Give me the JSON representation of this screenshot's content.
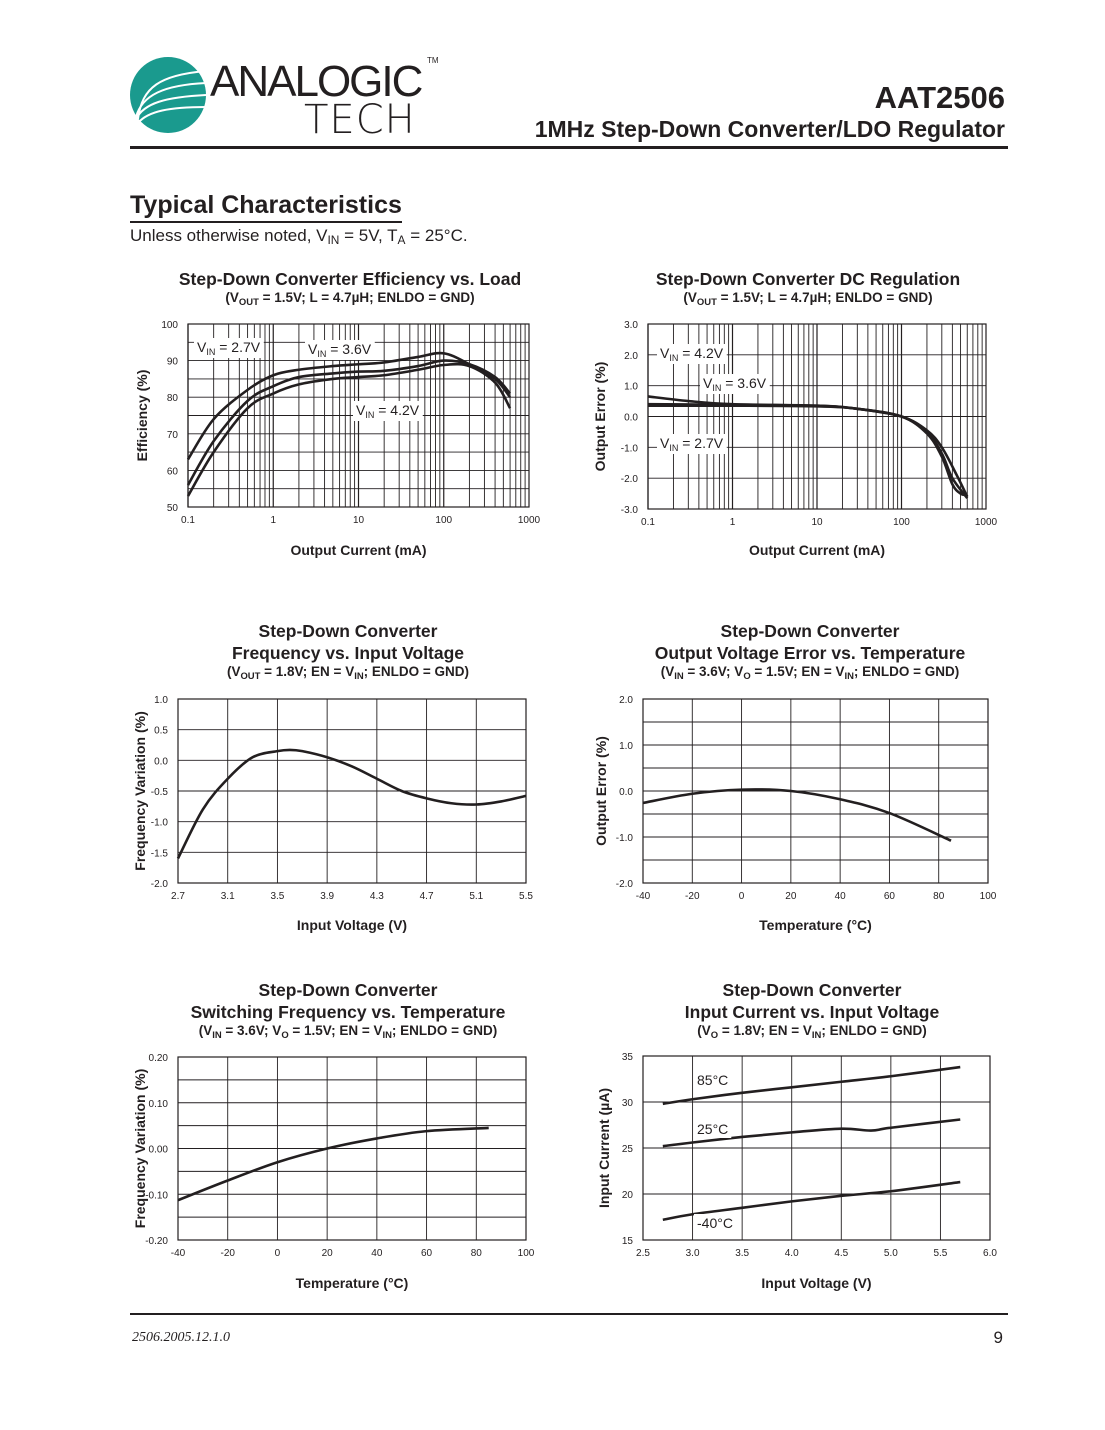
{
  "header": {
    "logo_top": "ANALOGIC",
    "logo_bottom": "TECH",
    "logo_tm": "TM",
    "logo_color": "#1a9a8e",
    "part_number": "AAT2506",
    "product_title": "1MHz Step-Down Converter/LDO Regulator"
  },
  "section": {
    "title": "Typical Characteristics",
    "note": [
      {
        "t": "Unless otherwise noted, V"
      },
      {
        "sub": "IN"
      },
      {
        "t": " = 5V, T"
      },
      {
        "sub": "A"
      },
      {
        "t": " = 25°C."
      }
    ]
  },
  "footer": {
    "doc_code": "2506.2005.12.1.0",
    "page_number": "9"
  },
  "chart_data": [
    {
      "type": "line",
      "title_lines": [
        "Step-Down Converter Efficiency vs. Load"
      ],
      "subtitle": [
        {
          "t": "(V"
        },
        {
          "sub": "OUT"
        },
        {
          "t": " = 1.5V; L = 4.7µH; ENLDO = GND)"
        }
      ],
      "xlabel": "Output Current (mA)",
      "ylabel": "Efficiency (%)",
      "xscale": "log",
      "xlim": [
        0.1,
        1000
      ],
      "ylim": [
        50,
        100
      ],
      "grid": true,
      "xticks": [
        0.1,
        1,
        10,
        100,
        1000
      ],
      "xtick_labels": [
        "0.1",
        "1",
        "10",
        "100",
        "1000"
      ],
      "yticks": [
        50,
        60,
        70,
        80,
        90,
        100
      ],
      "ytick_labels": [
        "50",
        "60",
        "70",
        "80",
        "90",
        "100"
      ],
      "ygrid_step": 5,
      "series": [
        {
          "label": [
            {
              "t": "V"
            },
            {
              "sub": "IN"
            },
            {
              "t": " = 2.7V"
            }
          ],
          "points": [
            [
              0.1,
              63
            ],
            [
              0.2,
              74
            ],
            [
              0.5,
              82
            ],
            [
              1,
              86
            ],
            [
              2,
              87.5
            ],
            [
              5,
              88.5
            ],
            [
              10,
              89
            ],
            [
              20,
              89.5
            ],
            [
              50,
              91
            ],
            [
              100,
              92
            ],
            [
              200,
              89
            ],
            [
              400,
              85
            ],
            [
              600,
              80
            ]
          ]
        },
        {
          "label": [
            {
              "t": "V"
            },
            {
              "sub": "IN"
            },
            {
              "t": " = 3.6V"
            }
          ],
          "points": [
            [
              0.1,
              56
            ],
            [
              0.2,
              68
            ],
            [
              0.5,
              79
            ],
            [
              1,
              83
            ],
            [
              2,
              85.5
            ],
            [
              5,
              86.5
            ],
            [
              10,
              87
            ],
            [
              20,
              87.2
            ],
            [
              50,
              88.5
            ],
            [
              100,
              90
            ],
            [
              200,
              89
            ],
            [
              400,
              85.5
            ],
            [
              600,
              81
            ]
          ]
        },
        {
          "label": [
            {
              "t": "V"
            },
            {
              "sub": "IN"
            },
            {
              "t": " = 4.2V"
            }
          ],
          "points": [
            [
              0.1,
              53
            ],
            [
              0.2,
              65
            ],
            [
              0.5,
              77
            ],
            [
              1,
              81
            ],
            [
              2,
              83.5
            ],
            [
              5,
              85
            ],
            [
              10,
              85.5
            ],
            [
              20,
              86
            ],
            [
              50,
              87.5
            ],
            [
              100,
              88.8
            ],
            [
              200,
              88.5
            ],
            [
              400,
              84
            ],
            [
              600,
              77
            ]
          ]
        }
      ]
    },
    {
      "type": "line",
      "title_lines": [
        "Step-Down Converter DC Regulation"
      ],
      "subtitle": [
        {
          "t": "(V"
        },
        {
          "sub": "OUT"
        },
        {
          "t": " = 1.5V; L = 4.7µH; ENLDO = GND)"
        }
      ],
      "xlabel": "Output Current (mA)",
      "ylabel": "Output Error (%)",
      "xscale": "log",
      "xlim": [
        0.1,
        1000
      ],
      "ylim": [
        -3,
        3
      ],
      "grid": true,
      "xticks": [
        0.1,
        1,
        10,
        100,
        1000
      ],
      "xtick_labels": [
        "0.1",
        "1",
        "10",
        "100",
        "1000"
      ],
      "yticks": [
        -3,
        -2,
        -1,
        0,
        1,
        2,
        3
      ],
      "ytick_labels": [
        "-3.0",
        "-2.0",
        "-1.0",
        "0.0",
        "1.0",
        "2.0",
        "3.0"
      ],
      "ygrid_step": 1,
      "series": [
        {
          "label": [
            {
              "t": "V"
            },
            {
              "sub": "IN"
            },
            {
              "t": " = 4.2V"
            }
          ],
          "points": [
            [
              0.1,
              0.65
            ],
            [
              0.3,
              0.5
            ],
            [
              1,
              0.4
            ],
            [
              10,
              0.35
            ],
            [
              30,
              0.25
            ],
            [
              100,
              0
            ],
            [
              200,
              -0.5
            ],
            [
              300,
              -1.2
            ],
            [
              400,
              -2.0
            ],
            [
              600,
              -2.65
            ]
          ]
        },
        {
          "label": [
            {
              "t": "V"
            },
            {
              "sub": "IN"
            },
            {
              "t": " = 3.6V"
            }
          ],
          "points": [
            [
              0.1,
              0.4
            ],
            [
              1,
              0.38
            ],
            [
              10,
              0.35
            ],
            [
              30,
              0.25
            ],
            [
              100,
              0
            ],
            [
              200,
              -0.45
            ],
            [
              300,
              -1.0
            ],
            [
              450,
              -1.9
            ],
            [
              600,
              -2.6
            ]
          ]
        },
        {
          "label": [
            {
              "t": "V"
            },
            {
              "sub": "IN"
            },
            {
              "t": " = 2.7V"
            }
          ],
          "points": [
            [
              0.1,
              0.35
            ],
            [
              1,
              0.35
            ],
            [
              10,
              0.33
            ],
            [
              30,
              0.25
            ],
            [
              100,
              0
            ],
            [
              200,
              -0.55
            ],
            [
              300,
              -1.3
            ],
            [
              400,
              -2.2
            ],
            [
              500,
              -2.5
            ],
            [
              600,
              -2.55
            ]
          ]
        }
      ]
    },
    {
      "type": "line",
      "title_lines": [
        "Step-Down Converter",
        "Frequency vs. Input Voltage"
      ],
      "subtitle": [
        {
          "t": "(V"
        },
        {
          "sub": "OUT"
        },
        {
          "t": " = 1.8V; EN = V"
        },
        {
          "sub": "IN"
        },
        {
          "t": "; ENLDO = GND)"
        }
      ],
      "xlabel": "Input Voltage (V)",
      "ylabel": "Frequency Variation (%)",
      "xscale": "linear",
      "xlim": [
        2.7,
        5.5
      ],
      "ylim": [
        -2,
        1
      ],
      "grid": true,
      "xticks": [
        2.7,
        3.1,
        3.5,
        3.9,
        4.3,
        4.7,
        5.1,
        5.5
      ],
      "xtick_labels": [
        "2.7",
        "3.1",
        "3.5",
        "3.9",
        "4.3",
        "4.7",
        "5.1",
        "5.5"
      ],
      "yticks": [
        -2,
        -1.5,
        -1,
        -0.5,
        0,
        0.5,
        1
      ],
      "ytick_labels": [
        "-2.0",
        "-1.5",
        "-1.0",
        "-0.5",
        "0.0",
        "0.5",
        "1.0"
      ],
      "ygrid_step": 0.5,
      "series": [
        {
          "points": [
            [
              2.7,
              -1.6
            ],
            [
              2.9,
              -0.8
            ],
            [
              3.1,
              -0.3
            ],
            [
              3.3,
              0.05
            ],
            [
              3.5,
              0.15
            ],
            [
              3.6,
              0.17
            ],
            [
              3.7,
              0.15
            ],
            [
              3.9,
              0.05
            ],
            [
              4.1,
              -0.1
            ],
            [
              4.3,
              -0.3
            ],
            [
              4.5,
              -0.5
            ],
            [
              4.7,
              -0.62
            ],
            [
              4.9,
              -0.7
            ],
            [
              5.1,
              -0.72
            ],
            [
              5.3,
              -0.67
            ],
            [
              5.5,
              -0.58
            ]
          ]
        }
      ]
    },
    {
      "type": "line",
      "title_lines": [
        "Step-Down Converter",
        "Output Voltage Error vs. Temperature"
      ],
      "subtitle": [
        {
          "t": "(V"
        },
        {
          "sub": "IN"
        },
        {
          "t": " = 3.6V; V"
        },
        {
          "sub": "O"
        },
        {
          "t": " = 1.5V; EN = V"
        },
        {
          "sub": "IN"
        },
        {
          "t": "; ENLDO = GND)"
        }
      ],
      "xlabel": "Temperature (°C)",
      "ylabel": "Output Error (%)",
      "xscale": "linear",
      "xlim": [
        -40,
        100
      ],
      "ylim": [
        -2,
        2
      ],
      "grid": true,
      "xticks": [
        -40,
        -20,
        0,
        20,
        40,
        60,
        80,
        100
      ],
      "xtick_labels": [
        "-40",
        "-20",
        "0",
        "20",
        "40",
        "60",
        "80",
        "100"
      ],
      "yticks": [
        -2,
        -1,
        0,
        1,
        2
      ],
      "ytick_labels": [
        "-2.0",
        "-1.0",
        "0.0",
        "1.0",
        "2.0"
      ],
      "ygrid_step": 0.5,
      "series": [
        {
          "points": [
            [
              -40,
              -0.26
            ],
            [
              -20,
              -0.06
            ],
            [
              0,
              0.03
            ],
            [
              20,
              0.0
            ],
            [
              40,
              -0.18
            ],
            [
              60,
              -0.48
            ],
            [
              85,
              -1.08
            ]
          ]
        }
      ]
    },
    {
      "type": "line",
      "title_lines": [
        "Step-Down Converter",
        "Switching Frequency vs. Temperature"
      ],
      "subtitle": [
        {
          "t": "(V"
        },
        {
          "sub": "IN"
        },
        {
          "t": " = 3.6V; V"
        },
        {
          "sub": "O"
        },
        {
          "t": " = 1.5V; EN = V"
        },
        {
          "sub": "IN"
        },
        {
          "t": "; ENLDO = GND)"
        }
      ],
      "xlabel": "Temperature (°C)",
      "ylabel": "Frequency Variation (%)",
      "xscale": "linear",
      "xlim": [
        -40,
        100
      ],
      "ylim": [
        -0.2,
        0.2
      ],
      "grid": true,
      "xticks": [
        -40,
        -20,
        0,
        20,
        40,
        60,
        80,
        100
      ],
      "xtick_labels": [
        "-40",
        "-20",
        "0",
        "20",
        "40",
        "60",
        "80",
        "100"
      ],
      "yticks": [
        -0.2,
        -0.1,
        0,
        0.1,
        0.2
      ],
      "ytick_labels": [
        "-0.20",
        "-0.10",
        "0.00",
        "0.10",
        "0.20"
      ],
      "ygrid_step": 0.05,
      "series": [
        {
          "points": [
            [
              -40,
              -0.113
            ],
            [
              -20,
              -0.07
            ],
            [
              0,
              -0.03
            ],
            [
              20,
              0.0
            ],
            [
              40,
              0.022
            ],
            [
              60,
              0.038
            ],
            [
              85,
              0.045
            ]
          ]
        }
      ]
    },
    {
      "type": "line",
      "title_lines": [
        "Step-Down Converter",
        "Input Current vs. Input Voltage"
      ],
      "subtitle": [
        {
          "t": "(V"
        },
        {
          "sub": "O"
        },
        {
          "t": " = 1.8V; EN = V"
        },
        {
          "sub": "IN"
        },
        {
          "t": "; ENLDO = GND)"
        }
      ],
      "xlabel": "Input Voltage (V)",
      "ylabel": "Input Current (µA)",
      "xscale": "linear",
      "xlim": [
        2.5,
        6.0
      ],
      "ylim": [
        15,
        35
      ],
      "grid": true,
      "xticks": [
        2.5,
        3,
        3.5,
        4,
        4.5,
        5,
        5.5,
        6
      ],
      "xtick_labels": [
        "2.5",
        "3.0",
        "3.5",
        "4.0",
        "4.5",
        "5.0",
        "5.5",
        "6.0"
      ],
      "yticks": [
        15,
        20,
        25,
        30,
        35
      ],
      "ytick_labels": [
        "15",
        "20",
        "25",
        "30",
        "35"
      ],
      "ygrid_step": 5,
      "series": [
        {
          "label": [
            {
              "t": "85°C"
            }
          ],
          "points": [
            [
              2.7,
              29.8
            ],
            [
              3.0,
              30.3
            ],
            [
              3.5,
              31.0
            ],
            [
              4.0,
              31.6
            ],
            [
              4.5,
              32.2
            ],
            [
              5.0,
              32.8
            ],
            [
              5.7,
              33.8
            ]
          ]
        },
        {
          "label": [
            {
              "t": "25°C"
            }
          ],
          "points": [
            [
              2.7,
              25.2
            ],
            [
              3.0,
              25.6
            ],
            [
              3.5,
              26.2
            ],
            [
              4.0,
              26.7
            ],
            [
              4.5,
              27.1
            ],
            [
              4.8,
              26.9
            ],
            [
              5.0,
              27.2
            ],
            [
              5.7,
              28.1
            ]
          ]
        },
        {
          "label": [
            {
              "t": "-40°C"
            }
          ],
          "points": [
            [
              2.7,
              17.2
            ],
            [
              3.0,
              17.8
            ],
            [
              3.5,
              18.5
            ],
            [
              4.0,
              19.2
            ],
            [
              4.5,
              19.8
            ],
            [
              5.0,
              20.3
            ],
            [
              5.7,
              21.3
            ]
          ]
        }
      ]
    }
  ]
}
